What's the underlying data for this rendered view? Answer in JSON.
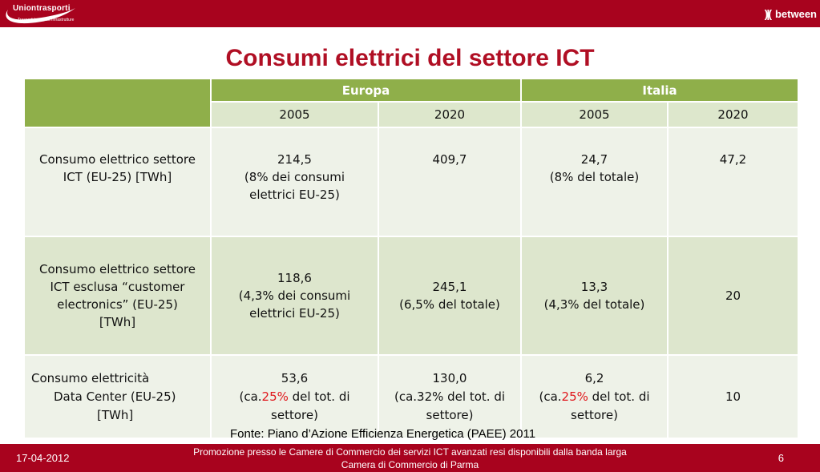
{
  "header": {
    "logo_left_name": "Uniontrasporti",
    "logo_left_sub": "Trasporti Logistica Infrastrutture",
    "logo_right_marks": ")|(",
    "logo_right_brand": "between"
  },
  "title": "Consumi elettrici del settore ICT",
  "table": {
    "group_headers": [
      "Europa",
      "Italia"
    ],
    "years": [
      "2005",
      "2020",
      "2005",
      "2020"
    ],
    "rows": [
      {
        "label_lines": [
          "Consumo elettrico settore",
          "ICT (EU-25) [TWh]"
        ],
        "cells": [
          [
            "214,5",
            "(8% dei  consumi",
            "elettrici EU-25)"
          ],
          [
            "409,7"
          ],
          [
            "24,7",
            "(8% del totale)"
          ],
          [
            "47,2"
          ]
        ]
      },
      {
        "label_lines": [
          "Consumo elettrico settore",
          "ICT esclusa “customer",
          "electronics” (EU-25)",
          "[TWh]"
        ],
        "cells": [
          [
            "118,6",
            "(4,3% dei consumi",
            "elettrici EU-25)"
          ],
          [
            "245,1",
            "(6,5% del totale)"
          ],
          [
            "13,3",
            "(4,3% del totale)"
          ],
          [
            "20"
          ]
        ]
      },
      {
        "label_lines": [
          "Consumo elettricità",
          "Data Center (EU-25)",
          "[TWh]"
        ],
        "cells": [
          {
            "value": "53,6",
            "pre": "(ca.",
            "highlight": "25%",
            "post": " del tot. di",
            "last": "settore)"
          },
          [
            "130,0",
            "(ca.32% del tot. di",
            "settore)"
          ],
          {
            "value": "6,2",
            "pre": "(ca.",
            "highlight": "25%",
            "post": " del tot. di",
            "last": "settore)"
          },
          [
            "10"
          ]
        ]
      }
    ]
  },
  "source": "Fonte: Piano d’Azione Efficienza Energetica (PAEE) 2011",
  "footer": {
    "date": "17-04-2012",
    "line1": "Promozione presso le Camere di Commercio dei servizi ICT avanzati resi disponibili dalla banda larga",
    "line2": "Camera di Commercio di Parma",
    "page": "6"
  },
  "colors": {
    "brand_red": "#a8031e",
    "title_red": "#b00f24",
    "header_green": "#8faf4a",
    "highlight_red": "#e0161b"
  }
}
